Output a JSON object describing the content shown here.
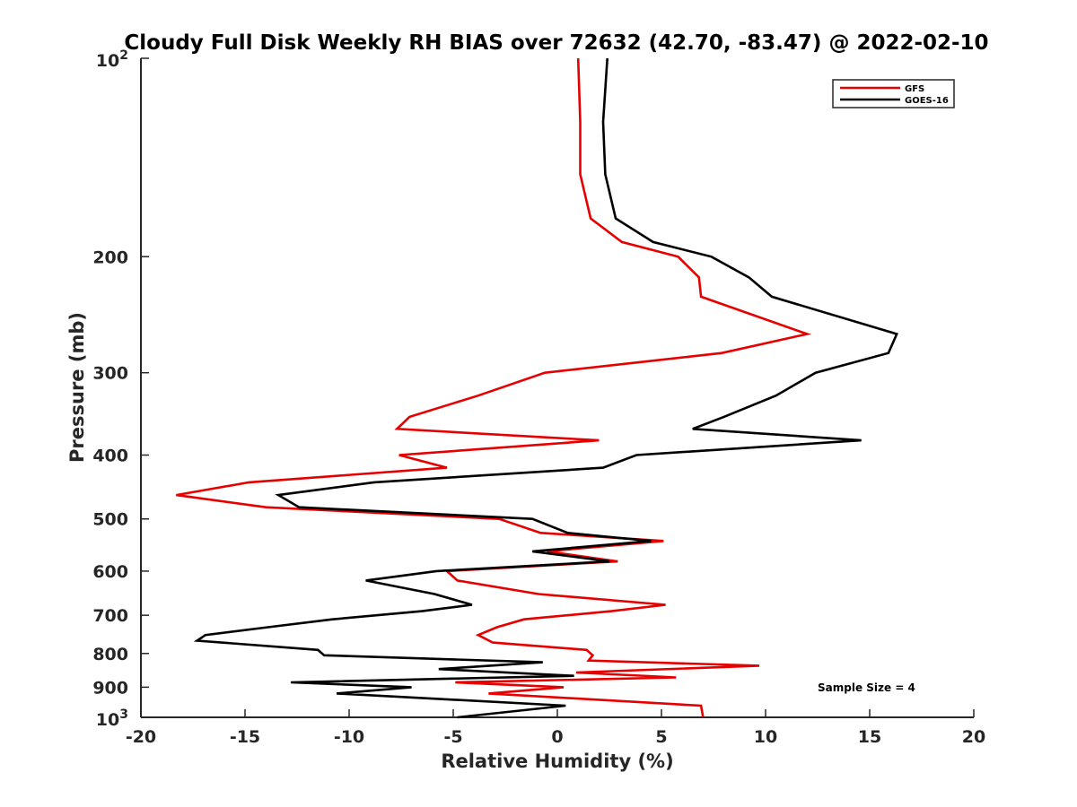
{
  "chart_data": {
    "type": "line",
    "title": "Cloudy Full Disk Weekly RH BIAS over 72632 (42.70, -83.47) @ 2022-02-10",
    "xlabel": "Relative Humidity (%)",
    "ylabel": "Pressure (mb)",
    "xlim": [
      -20,
      20
    ],
    "ylim": [
      100,
      1000
    ],
    "yscale": "log",
    "y_reversed": true,
    "grid": false,
    "legend_position": "top-right",
    "x_ticks": [
      "-20",
      "-15",
      "-10",
      "-5",
      "0",
      "5",
      "10",
      "15",
      "20"
    ],
    "x_tick_values": [
      -20,
      -15,
      -10,
      -5,
      0,
      5,
      10,
      15,
      20
    ],
    "y_ticks": [
      {
        "label": "200",
        "value": 200
      },
      {
        "label": "300",
        "value": 300
      },
      {
        "label": "400",
        "value": 400
      },
      {
        "label": "500",
        "value": 500
      },
      {
        "label": "600",
        "value": 600
      },
      {
        "label": "700",
        "value": 700
      },
      {
        "label": "800",
        "value": 800
      },
      {
        "label": "900",
        "value": 900
      }
    ],
    "y_tick_top": {
      "base": "10",
      "exp": "2",
      "value": 100
    },
    "y_tick_bottom": {
      "base": "10",
      "exp": "3",
      "value": 1000
    },
    "series": [
      {
        "name": "GFS",
        "color": "#e60000",
        "points": [
          [
            1.0,
            100
          ],
          [
            1.1,
            125
          ],
          [
            1.1,
            150
          ],
          [
            1.6,
            175
          ],
          [
            3.1,
            190
          ],
          [
            5.8,
            200
          ],
          [
            6.8,
            215
          ],
          [
            6.9,
            230
          ],
          [
            12.0,
            262
          ],
          [
            7.9,
            280
          ],
          [
            -0.6,
            300
          ],
          [
            -3.8,
            325
          ],
          [
            -7.1,
            350
          ],
          [
            -7.7,
            365
          ],
          [
            2.0,
            380
          ],
          [
            -7.6,
            400
          ],
          [
            -5.3,
            418
          ],
          [
            -14.8,
            440
          ],
          [
            -18.3,
            460
          ],
          [
            -14.0,
            480
          ],
          [
            -2.8,
            500
          ],
          [
            -0.8,
            525
          ],
          [
            5.1,
            540
          ],
          [
            -0.5,
            560
          ],
          [
            2.9,
            580
          ],
          [
            -5.3,
            600
          ],
          [
            -4.8,
            620
          ],
          [
            -0.9,
            650
          ],
          [
            5.2,
            675
          ],
          [
            2.6,
            690
          ],
          [
            -1.6,
            710
          ],
          [
            -2.9,
            730
          ],
          [
            -3.8,
            750
          ],
          [
            -3.1,
            770
          ],
          [
            1.4,
            790
          ],
          [
            1.7,
            805
          ],
          [
            1.5,
            820
          ],
          [
            9.7,
            835
          ],
          [
            0.9,
            855
          ],
          [
            5.7,
            870
          ],
          [
            -4.9,
            885
          ],
          [
            0.3,
            900
          ],
          [
            -3.3,
            920
          ],
          [
            6.9,
            960
          ],
          [
            7.0,
            1000
          ]
        ]
      },
      {
        "name": "GOES-16",
        "color": "#000000",
        "points": [
          [
            2.4,
            100
          ],
          [
            2.2,
            125
          ],
          [
            2.3,
            150
          ],
          [
            2.8,
            175
          ],
          [
            4.6,
            190
          ],
          [
            7.4,
            200
          ],
          [
            9.2,
            215
          ],
          [
            10.3,
            230
          ],
          [
            16.3,
            262
          ],
          [
            15.9,
            280
          ],
          [
            12.4,
            300
          ],
          [
            10.5,
            325
          ],
          [
            8.0,
            350
          ],
          [
            6.5,
            365
          ],
          [
            14.6,
            380
          ],
          [
            3.8,
            400
          ],
          [
            2.2,
            418
          ],
          [
            -8.8,
            440
          ],
          [
            -13.4,
            460
          ],
          [
            -12.4,
            480
          ],
          [
            -1.2,
            500
          ],
          [
            0.5,
            525
          ],
          [
            4.5,
            540
          ],
          [
            -1.2,
            560
          ],
          [
            2.5,
            580
          ],
          [
            -5.8,
            600
          ],
          [
            -9.2,
            620
          ],
          [
            -5.9,
            650
          ],
          [
            -4.1,
            675
          ],
          [
            -6.5,
            690
          ],
          [
            -10.8,
            710
          ],
          [
            -13.9,
            730
          ],
          [
            -16.9,
            750
          ],
          [
            -17.3,
            765
          ],
          [
            -11.5,
            790
          ],
          [
            -11.2,
            805
          ],
          [
            -0.7,
            825
          ],
          [
            -5.7,
            845
          ],
          [
            0.8,
            865
          ],
          [
            -12.8,
            885
          ],
          [
            -7.0,
            900
          ],
          [
            -10.6,
            920
          ],
          [
            0.4,
            960
          ],
          [
            -4.8,
            1000
          ]
        ]
      }
    ],
    "annotation": "Sample Size = 4"
  }
}
